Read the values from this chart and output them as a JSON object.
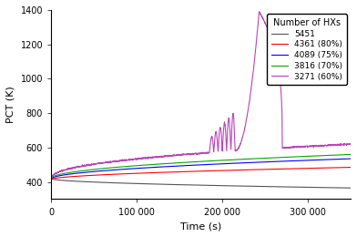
{
  "title": "",
  "xlabel": "Time (s)",
  "ylabel": "PCT (K)",
  "xlim": [
    0,
    350000
  ],
  "ylim": [
    300,
    1400
  ],
  "yticks": [
    400,
    600,
    800,
    1000,
    1200,
    1400
  ],
  "xticks": [
    0,
    100000,
    200000,
    300000
  ],
  "xtick_labels": [
    "0",
    "100 000",
    "200 000",
    "300 000"
  ],
  "legend_title": "Number of HXs",
  "series": [
    {
      "label": "5451",
      "color": "#555555"
    },
    {
      "label": "4361 (80%)",
      "color": "#ff0000"
    },
    {
      "label": "4089 (75%)",
      "color": "#0000ff"
    },
    {
      "label": "3816 (70%)",
      "color": "#00aa00"
    },
    {
      "label": "3271 (60%)",
      "color": "#bb44bb"
    }
  ]
}
